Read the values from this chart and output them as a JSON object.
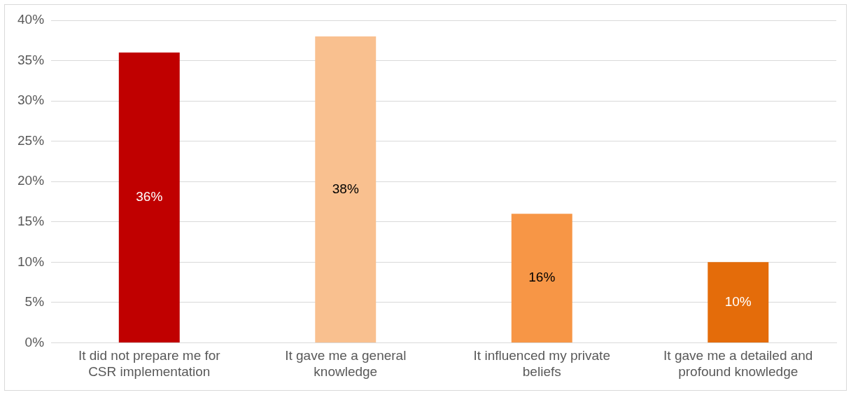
{
  "chart_data": {
    "type": "bar",
    "categories": [
      "It did not prepare me for CSR implementation",
      "It gave me a general knowledge",
      "It influenced my private beliefs",
      "It gave me a detailed and profound knowledge"
    ],
    "values": [
      36,
      38,
      16,
      10
    ],
    "colors": [
      "#c00000",
      "#f9c08f",
      "#f79646",
      "#e46c0a"
    ],
    "value_labels": [
      "36%",
      "38%",
      "16%",
      "10%"
    ],
    "ylim": [
      0,
      40
    ],
    "yticks": [
      {
        "value": 0,
        "label": "0%"
      },
      {
        "value": 5,
        "label": "5%"
      },
      {
        "value": 10,
        "label": "10%"
      },
      {
        "value": 15,
        "label": "15%"
      },
      {
        "value": 20,
        "label": "20%"
      },
      {
        "value": 25,
        "label": "25%"
      },
      {
        "value": 30,
        "label": "30%"
      },
      {
        "value": 35,
        "label": "35%"
      },
      {
        "value": 40,
        "label": "40%"
      }
    ],
    "grid": "y"
  }
}
